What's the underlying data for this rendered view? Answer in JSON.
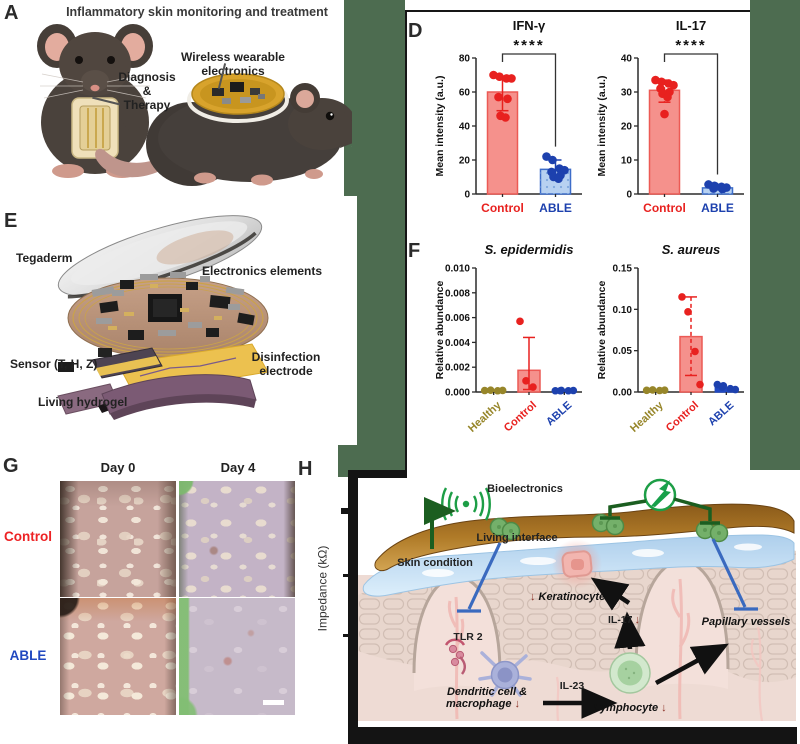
{
  "colors": {
    "backdrop_green": "#4d6c50",
    "control_red": "#ed2224",
    "able_blue": "#2148c0",
    "healthy_olive": "#97862a",
    "box_border": "#161616"
  },
  "panel_a": {
    "label": "A",
    "title": "Inflammatory skin monitoring and treatment",
    "diagnosis_lines": [
      "Diagnosis",
      "&",
      "Therapy"
    ],
    "wireless": "Wireless wearable electronics"
  },
  "panel_d": {
    "label": "D"
  },
  "panel_e": {
    "label": "E",
    "tegaderm": "Tegaderm",
    "electronics": "Electronics elements",
    "sensor": "Sensor (T, H, Z)",
    "disinfection": "Disinfection electrode",
    "hydrogel": "Living hydrogel"
  },
  "panel_f": {
    "label": "F"
  },
  "panel_g": {
    "label": "G",
    "col_headers": [
      "Day 0",
      "Day 4"
    ],
    "row_labels": [
      "Control",
      "ABLE"
    ]
  },
  "panel_h": {
    "label": "H",
    "impedance": "Impedance (kΩ)",
    "bioelectronics": "Bioelectronics",
    "living_interface": "Living interface",
    "skin_condition": "Skin condition",
    "tlr2": "TLR 2",
    "keratinocyte": "Keratinocyte",
    "il17": "IL-17",
    "papillary": "Papillary vessels",
    "dendritic1": "Dendritic cell &",
    "dendritic2": "macrophage",
    "il23": "IL-23",
    "lymphocyte": "Lymphocyte",
    "down": "↓"
  },
  "chart_data": [
    {
      "type": "bar",
      "title": "IFN-γ",
      "ylabel": "Mean intensity (a.u.)",
      "ymax": 80,
      "yticks": [
        0,
        20,
        40,
        60,
        80
      ],
      "decimals": 0,
      "sig": "****",
      "legend_position": "none",
      "grid": false,
      "groups": [
        {
          "label": "Control",
          "color": "#e8211f",
          "bar_fill": "#f5918c",
          "bar_stroke": "#ec5a55",
          "bar": 60,
          "err": [
            49,
            69
          ],
          "points": [
            70,
            69,
            68,
            68,
            57,
            56,
            46,
            45
          ]
        },
        {
          "label": "ABLE",
          "color": "#1d41ae",
          "bar_fill": "#b7d1f1",
          "bar_stroke": "#3d6dc9",
          "bar": 14.5,
          "err": [
            10,
            20
          ],
          "pattern": true,
          "points": [
            22,
            20,
            15,
            14,
            13,
            11,
            10,
            9
          ]
        }
      ]
    },
    {
      "type": "bar",
      "title": "IL-17",
      "ylabel": "Mean intensity (a.u.)",
      "ymax": 40,
      "yticks": [
        0,
        10,
        20,
        30,
        40
      ],
      "decimals": 0,
      "sig": "****",
      "legend_position": "none",
      "grid": false,
      "groups": [
        {
          "label": "Control",
          "color": "#e8211f",
          "bar_fill": "#f5918c",
          "bar_stroke": "#ec5a55",
          "bar": 30.5,
          "err": [
            27,
            33.5
          ],
          "err_dash": true,
          "points": [
            33.5,
            33,
            32.5,
            32,
            31,
            30,
            29.5,
            28.5,
            23.5
          ]
        },
        {
          "label": "ABLE",
          "color": "#1d41ae",
          "bar_fill": "#b7d1f1",
          "bar_stroke": "#3d6dc9",
          "bar": 1.8,
          "err": [
            1.2,
            2.6
          ],
          "pattern": true,
          "points": [
            2.8,
            2.4,
            2.1,
            1.9,
            1.6,
            1.4,
            2.2
          ]
        }
      ]
    },
    {
      "type": "bar",
      "title": "S. epidermidis",
      "title_italic": true,
      "ylabel": "Relative abundance",
      "ymax": 0.01,
      "yticks": [
        0,
        0.002,
        0.004,
        0.006,
        0.008,
        0.01
      ],
      "decimals": 3,
      "rotated_labels": true,
      "grid": false,
      "groups": [
        {
          "label": "Healthy",
          "color": "#97862a",
          "bar_fill": "#97862a",
          "bar_stroke": "#97862a",
          "bar": 0.00015,
          "points": [
            0.00012,
            0.00015,
            0.0001,
            0.00013
          ]
        },
        {
          "label": "Control",
          "color": "#e8211f",
          "bar_fill": "#f5918c",
          "bar_stroke": "#ec5a55",
          "bar": 0.00175,
          "err": [
            0.0002,
            0.0044
          ],
          "points": [
            0.0057,
            0.0009,
            0.0004
          ]
        },
        {
          "label": "ABLE",
          "color": "#1d41ae",
          "bar_fill": "#2148c0",
          "bar_stroke": "#2148c0",
          "bar": 0.00012,
          "points": [
            0.0001,
            0.00013,
            0.0001,
            0.00012,
            0.0001
          ]
        }
      ]
    },
    {
      "type": "bar",
      "title": "S. aureus",
      "title_italic": true,
      "ylabel": "Relative abundance",
      "ymax": 0.15,
      "yticks": [
        0,
        0.05,
        0.1,
        0.15
      ],
      "decimals": 2,
      "rotated_labels": true,
      "grid": false,
      "groups": [
        {
          "label": "Healthy",
          "color": "#97862a",
          "bar_fill": "#97862a",
          "bar_stroke": "#97862a",
          "bar": 0.002,
          "points": [
            0.002,
            0.0025,
            0.0018,
            0.0022
          ]
        },
        {
          "label": "Control",
          "color": "#e8211f",
          "bar_fill": "#f5918c",
          "bar_stroke": "#ec5a55",
          "bar": 0.067,
          "err": [
            0.02,
            0.115
          ],
          "err_dash": true,
          "points": [
            0.115,
            0.097,
            0.049,
            0.009
          ]
        },
        {
          "label": "ABLE",
          "color": "#1d41ae",
          "bar_fill": "#2148c0",
          "bar_stroke": "#2148c0",
          "bar": 0.005,
          "points": [
            0.009,
            0.0075,
            0.004,
            0.003,
            0.006
          ]
        }
      ]
    }
  ]
}
